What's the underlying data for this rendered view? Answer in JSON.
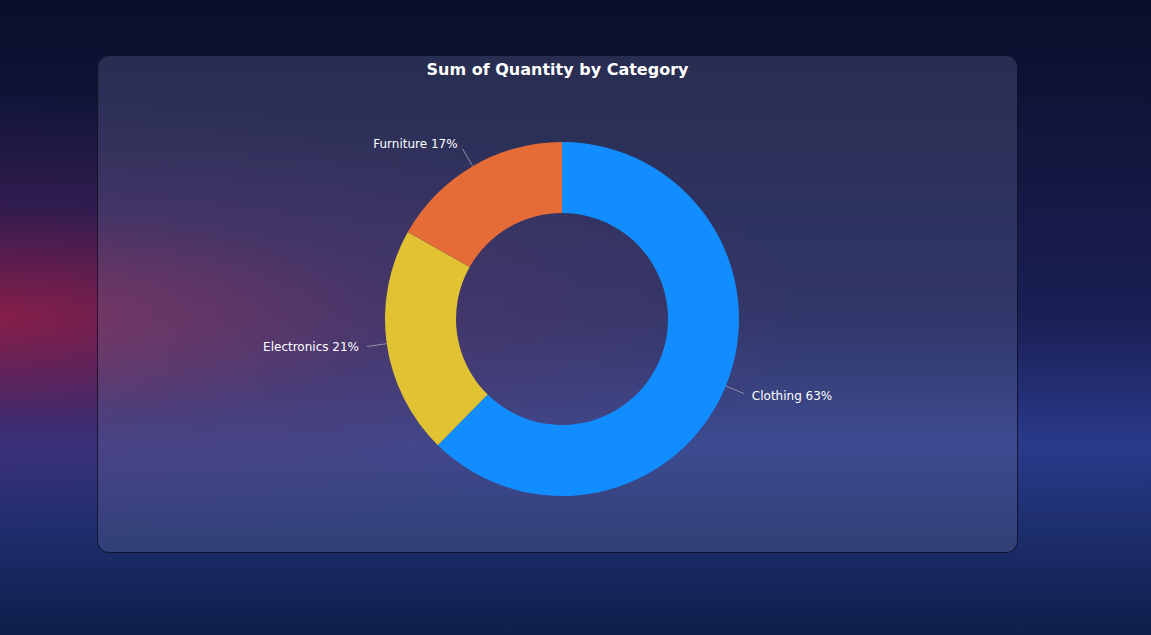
{
  "chart_data": {
    "type": "pie",
    "title": "Sum of Quantity by Category",
    "categories": [
      "Clothing",
      "Electronics",
      "Furniture"
    ],
    "values": [
      63,
      21,
      17
    ],
    "value_labels": [
      "Clothing 63%",
      "Electronics 21%",
      "Furniture 17%"
    ],
    "colors": [
      "#118DFF",
      "#E1C233",
      "#E66C37"
    ],
    "data_labels": true
  }
}
